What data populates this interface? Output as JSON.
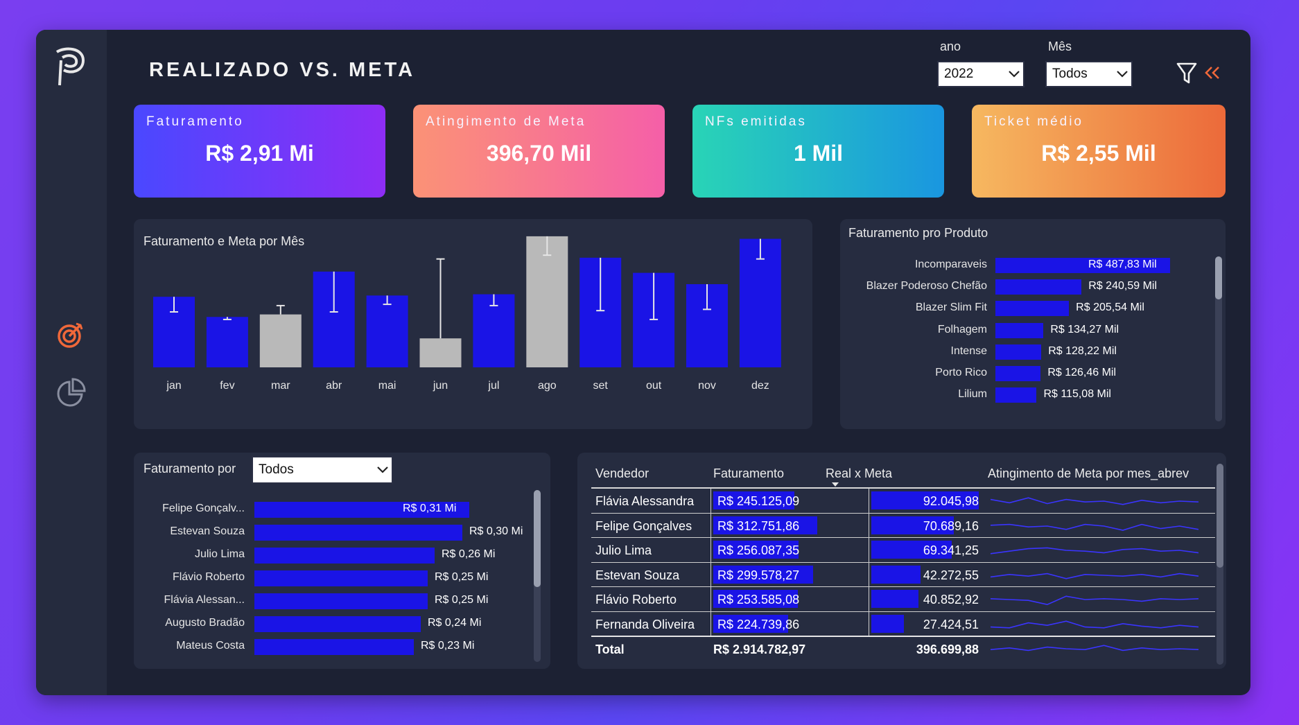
{
  "header": {
    "title": "REALIZADO VS. META"
  },
  "filters": {
    "ano": {
      "label": "ano",
      "value": "2022"
    },
    "mes": {
      "label": "Mês",
      "value": "Todos"
    }
  },
  "kpis": [
    {
      "label": "Faturamento",
      "value": "R$ 2,91 Mi"
    },
    {
      "label": "Atingimento de Meta",
      "value": "396,70 Mil"
    },
    {
      "label": "NFs emitidas",
      "value": "1 Mil"
    },
    {
      "label": "Ticket médio",
      "value": "R$ 2,55 Mil"
    }
  ],
  "colors": {
    "bar": "#1a14e6",
    "bar_gray": "#b9b9b9",
    "accent": "#f0683a"
  },
  "chart_data": [
    {
      "type": "bar",
      "title": "Faturamento e Meta por Mês",
      "categories": [
        "jan",
        "fev",
        "mar",
        "abr",
        "mai",
        "jun",
        "jul",
        "ago",
        "set",
        "out",
        "nov",
        "dez"
      ],
      "series": [
        {
          "name": "Faturamento",
          "values": [
            0.56,
            0.4,
            0.42,
            0.76,
            0.57,
            0.23,
            0.58,
            1.04,
            0.87,
            0.75,
            0.66,
            1.02
          ]
        },
        {
          "name": "Meta",
          "values": [
            0.44,
            0.38,
            0.49,
            0.44,
            0.5,
            0.86,
            0.49,
            0.89,
            0.45,
            0.38,
            0.46,
            0.86
          ]
        }
      ],
      "below_meta": [
        false,
        false,
        true,
        false,
        false,
        true,
        false,
        true,
        false,
        false,
        false,
        false
      ]
    },
    {
      "type": "bar",
      "title": "Faturamento pro Produto",
      "categories": [
        "Incomparaveis",
        "Blazer Poderoso Chefão",
        "Blazer Slim Fit",
        "Folhagem",
        "Intense",
        "Porto Rico",
        "Lilium"
      ],
      "values": [
        487.83,
        240.59,
        205.54,
        134.27,
        128.22,
        126.46,
        115.08
      ],
      "labels": [
        "R$ 487,83 Mil",
        "R$ 240,59 Mil",
        "R$ 205,54 Mil",
        "R$ 134,27 Mil",
        "R$ 128,22 Mil",
        "R$ 126,46 Mil",
        "R$ 115,08 Mil"
      ]
    },
    {
      "type": "bar",
      "title": "Faturamento por",
      "categories": [
        "Felipe Gonçalv...",
        "Estevan Souza",
        "Julio Lima",
        "Flávio Roberto",
        "Flávia Alessan...",
        "Augusto Bradão",
        "Mateus Costa"
      ],
      "values": [
        0.31,
        0.3,
        0.26,
        0.25,
        0.25,
        0.24,
        0.23
      ],
      "labels": [
        "R$ 0,31 Mi",
        "R$ 0,30 Mi",
        "R$ 0,26 Mi",
        "R$ 0,25 Mi",
        "R$ 0,25 Mi",
        "R$ 0,24 Mi",
        "R$ 0,23 Mi"
      ]
    }
  ],
  "faturamento_por": {
    "select_value": "Todos"
  },
  "table": {
    "headers": [
      "Vendedor",
      "Faturamento",
      "Real x Meta",
      "Atingimento de Meta por mes_abrev"
    ],
    "rows": [
      {
        "vendedor": "Flávia Alessandra",
        "faturamento": "R$ 245.125,09",
        "real_meta": "92.045,98",
        "fat_frac": 0.78,
        "meta_frac": 1.0,
        "spark": [
          0.6,
          0.4,
          0.7,
          0.35,
          0.6,
          0.45,
          0.5,
          0.3,
          0.55,
          0.4,
          0.5,
          0.45
        ]
      },
      {
        "vendedor": "Felipe Gonçalves",
        "faturamento": "R$ 312.751,86",
        "real_meta": "70.689,16",
        "fat_frac": 1.0,
        "meta_frac": 0.77,
        "spark": [
          0.55,
          0.6,
          0.45,
          0.5,
          0.3,
          0.6,
          0.5,
          0.25,
          0.6,
          0.35,
          0.5,
          0.3
        ]
      },
      {
        "vendedor": "Julio Lima",
        "faturamento": "R$ 256.087,35",
        "real_meta": "69.341,25",
        "fat_frac": 0.82,
        "meta_frac": 0.75,
        "spark": [
          0.3,
          0.45,
          0.6,
          0.65,
          0.5,
          0.45,
          0.35,
          0.55,
          0.6,
          0.45,
          0.5,
          0.35
        ]
      },
      {
        "vendedor": "Estevan Souza",
        "faturamento": "R$ 299.578,27",
        "real_meta": "42.272,55",
        "fat_frac": 0.96,
        "meta_frac": 0.46,
        "spark": [
          0.4,
          0.55,
          0.45,
          0.6,
          0.3,
          0.55,
          0.5,
          0.45,
          0.55,
          0.4,
          0.6,
          0.45
        ]
      },
      {
        "vendedor": "Flávio Roberto",
        "faturamento": "R$ 253.585,08",
        "real_meta": "40.852,92",
        "fat_frac": 0.81,
        "meta_frac": 0.44,
        "spark": [
          0.55,
          0.5,
          0.45,
          0.2,
          0.7,
          0.5,
          0.55,
          0.5,
          0.4,
          0.55,
          0.5,
          0.55
        ]
      },
      {
        "vendedor": "Fernanda Oliveira",
        "faturamento": "R$ 224.739,86",
        "real_meta": "27.424,51",
        "fat_frac": 0.72,
        "meta_frac": 0.3,
        "spark": [
          0.35,
          0.3,
          0.6,
          0.45,
          0.7,
          0.35,
          0.3,
          0.55,
          0.4,
          0.3,
          0.45,
          0.35
        ]
      }
    ],
    "total": {
      "label": "Total",
      "faturamento": "R$ 2.914.782,97",
      "real_meta": "396.699,88",
      "spark": [
        0.45,
        0.55,
        0.4,
        0.6,
        0.5,
        0.45,
        0.7,
        0.4,
        0.55,
        0.45,
        0.5,
        0.45
      ]
    }
  }
}
